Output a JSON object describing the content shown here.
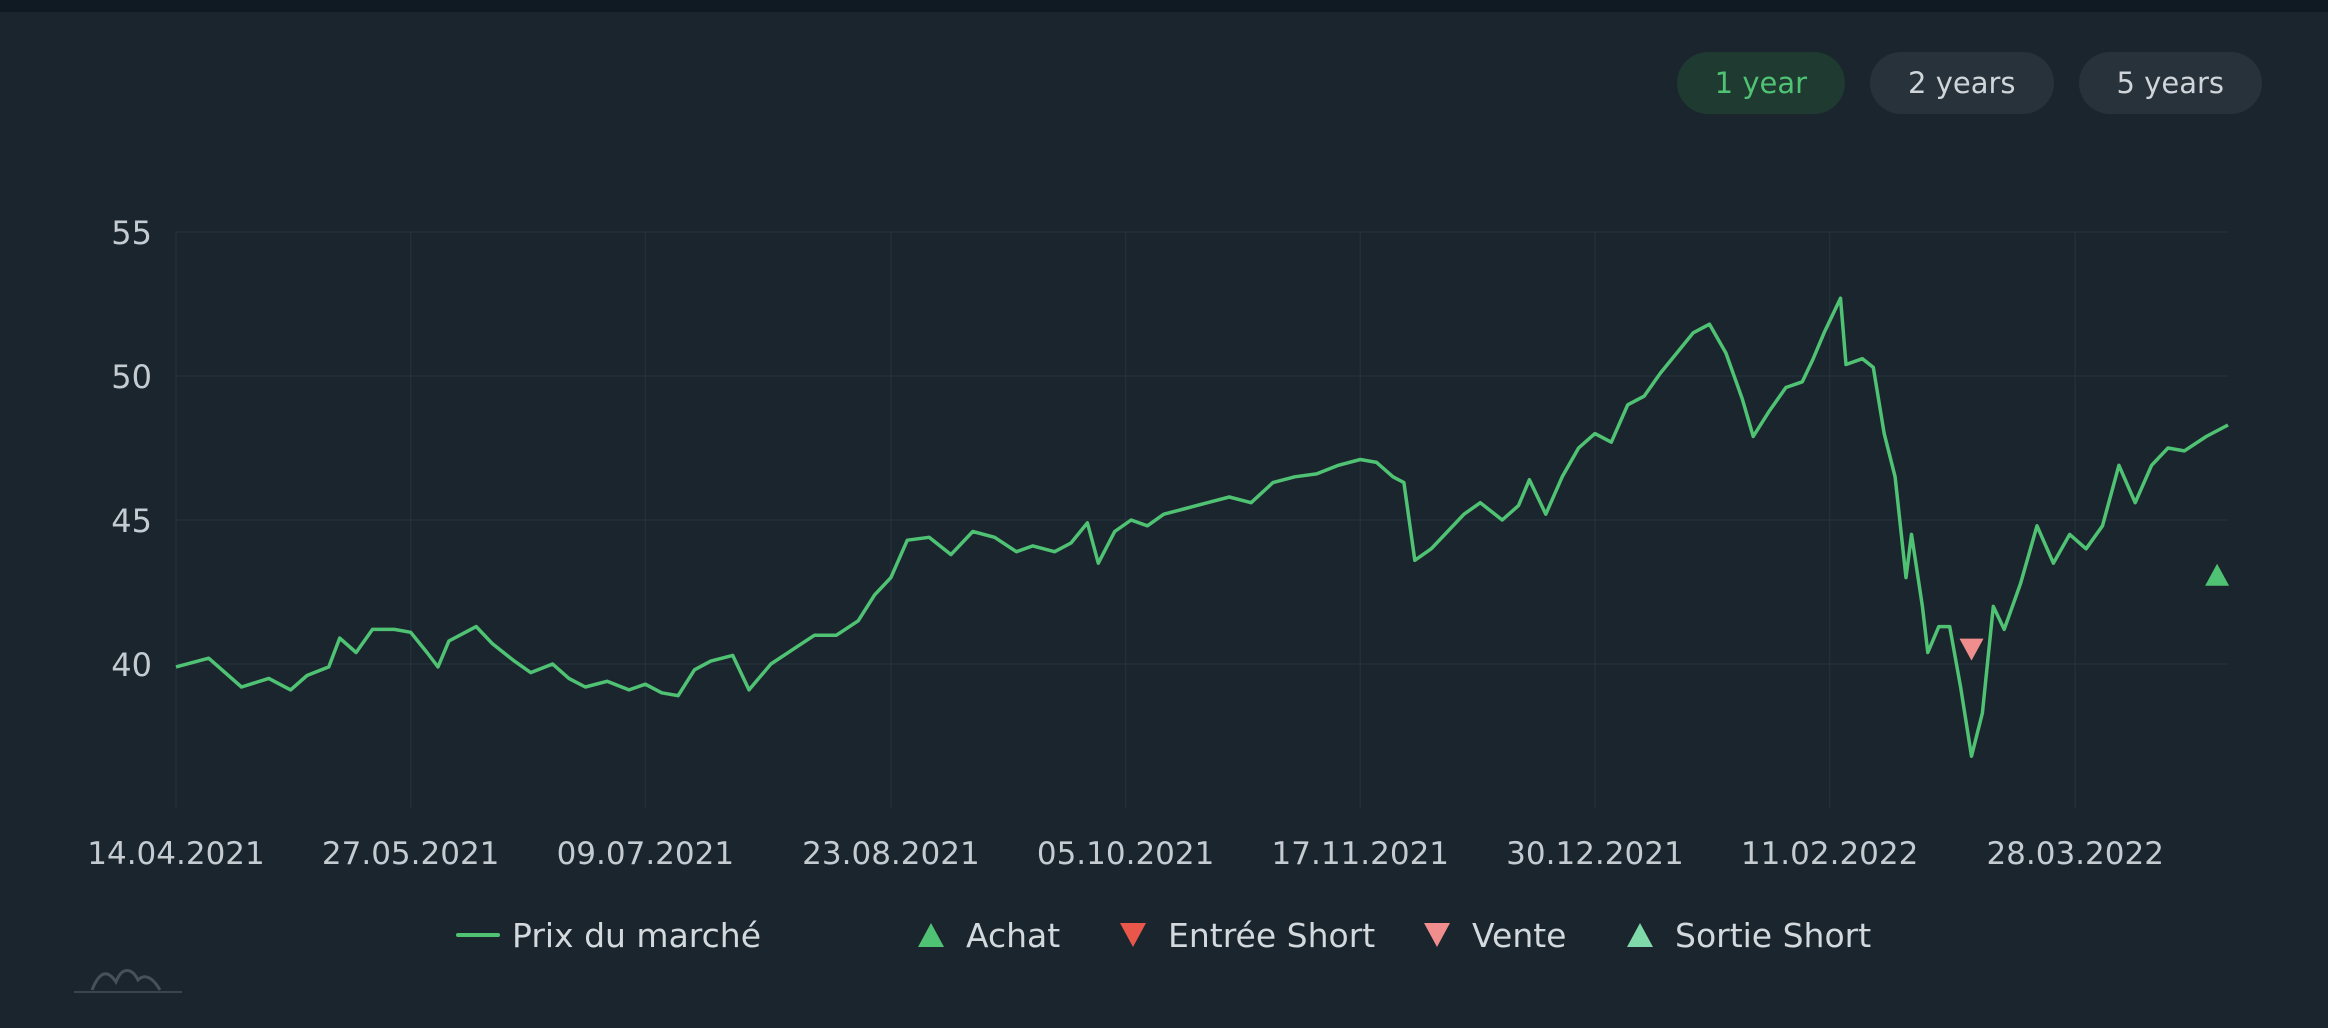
{
  "range_buttons": [
    {
      "label": "1 year",
      "active": true
    },
    {
      "label": "2 years",
      "active": false
    },
    {
      "label": "5 years",
      "active": false
    }
  ],
  "colors": {
    "background": "#1a252d",
    "line": "#4fc273",
    "grid": "#22303a",
    "axis_text": "#c5ccd1",
    "achat": "#4fc273",
    "entree_short": "#e9574b",
    "vente": "#f08d8d",
    "sortie_short": "#7fd9a8"
  },
  "legend": [
    {
      "label": "Prix du marché",
      "icon": "line-icon"
    },
    {
      "label": "Achat",
      "icon": "triangle-up-icon"
    },
    {
      "label": "Entrée Short",
      "icon": "triangle-down-icon"
    },
    {
      "label": "Vente",
      "icon": "triangle-down-icon"
    },
    {
      "label": "Sortie Short",
      "icon": "triangle-up-icon"
    }
  ],
  "chart_data": {
    "type": "line",
    "title": "",
    "xlabel": "",
    "ylabel": "",
    "ylim": [
      35,
      55
    ],
    "yticks": [
      40,
      45,
      50,
      55
    ],
    "xticks": [
      "14.04.2021",
      "27.05.2021",
      "09.07.2021",
      "23.08.2021",
      "05.10.2021",
      "17.11.2021",
      "30.12.2021",
      "11.02.2022",
      "28.03.2022"
    ],
    "x_start": "2021-04-14",
    "x_end": "2022-04-25",
    "grid": true,
    "legend_position": "bottom",
    "series": [
      {
        "name": "Prix du marché",
        "points": [
          [
            "2021-04-14",
            39.9
          ],
          [
            "2021-04-20",
            40.2
          ],
          [
            "2021-04-26",
            39.2
          ],
          [
            "2021-05-01",
            39.5
          ],
          [
            "2021-05-05",
            39.1
          ],
          [
            "2021-05-08",
            39.6
          ],
          [
            "2021-05-12",
            39.9
          ],
          [
            "2021-05-14",
            40.9
          ],
          [
            "2021-05-17",
            40.4
          ],
          [
            "2021-05-20",
            41.2
          ],
          [
            "2021-05-24",
            41.2
          ],
          [
            "2021-05-27",
            41.1
          ],
          [
            "2021-05-30",
            40.4
          ],
          [
            "2021-06-01",
            39.9
          ],
          [
            "2021-06-03",
            40.8
          ],
          [
            "2021-06-08",
            41.3
          ],
          [
            "2021-06-11",
            40.7
          ],
          [
            "2021-06-15",
            40.1
          ],
          [
            "2021-06-18",
            39.7
          ],
          [
            "2021-06-22",
            40.0
          ],
          [
            "2021-06-25",
            39.5
          ],
          [
            "2021-06-28",
            39.2
          ],
          [
            "2021-07-02",
            39.4
          ],
          [
            "2021-07-06",
            39.1
          ],
          [
            "2021-07-09",
            39.3
          ],
          [
            "2021-07-12",
            39.0
          ],
          [
            "2021-07-15",
            38.9
          ],
          [
            "2021-07-18",
            39.8
          ],
          [
            "2021-07-21",
            40.1
          ],
          [
            "2021-07-25",
            40.3
          ],
          [
            "2021-07-28",
            39.1
          ],
          [
            "2021-08-01",
            40.0
          ],
          [
            "2021-08-05",
            40.5
          ],
          [
            "2021-08-09",
            41.0
          ],
          [
            "2021-08-13",
            41.0
          ],
          [
            "2021-08-17",
            41.5
          ],
          [
            "2021-08-20",
            42.4
          ],
          [
            "2021-08-23",
            43.0
          ],
          [
            "2021-08-26",
            44.3
          ],
          [
            "2021-08-30",
            44.4
          ],
          [
            "2021-09-03",
            43.8
          ],
          [
            "2021-09-07",
            44.6
          ],
          [
            "2021-09-11",
            44.4
          ],
          [
            "2021-09-15",
            43.9
          ],
          [
            "2021-09-18",
            44.1
          ],
          [
            "2021-09-22",
            43.9
          ],
          [
            "2021-09-25",
            44.2
          ],
          [
            "2021-09-28",
            44.9
          ],
          [
            "2021-09-30",
            43.5
          ],
          [
            "2021-10-03",
            44.6
          ],
          [
            "2021-10-06",
            45.0
          ],
          [
            "2021-10-09",
            44.8
          ],
          [
            "2021-10-12",
            45.2
          ],
          [
            "2021-10-16",
            45.4
          ],
          [
            "2021-10-20",
            45.6
          ],
          [
            "2021-10-24",
            45.8
          ],
          [
            "2021-10-28",
            45.6
          ],
          [
            "2021-11-01",
            46.3
          ],
          [
            "2021-11-05",
            46.5
          ],
          [
            "2021-11-09",
            46.6
          ],
          [
            "2021-11-13",
            46.9
          ],
          [
            "2021-11-17",
            47.1
          ],
          [
            "2021-11-20",
            47.0
          ],
          [
            "2021-11-23",
            46.5
          ],
          [
            "2021-11-25",
            46.3
          ],
          [
            "2021-11-27",
            43.6
          ],
          [
            "2021-11-30",
            44.0
          ],
          [
            "2021-12-03",
            44.6
          ],
          [
            "2021-12-06",
            45.2
          ],
          [
            "2021-12-09",
            45.6
          ],
          [
            "2021-12-13",
            45.0
          ],
          [
            "2021-12-16",
            45.5
          ],
          [
            "2021-12-18",
            46.4
          ],
          [
            "2021-12-21",
            45.2
          ],
          [
            "2021-12-24",
            46.5
          ],
          [
            "2021-12-27",
            47.5
          ],
          [
            "2021-12-30",
            48.0
          ],
          [
            "2022-01-02",
            47.7
          ],
          [
            "2022-01-05",
            49.0
          ],
          [
            "2022-01-08",
            49.3
          ],
          [
            "2022-01-11",
            50.1
          ],
          [
            "2022-01-14",
            50.8
          ],
          [
            "2022-01-17",
            51.5
          ],
          [
            "2022-01-20",
            51.8
          ],
          [
            "2022-01-23",
            50.8
          ],
          [
            "2022-01-26",
            49.2
          ],
          [
            "2022-01-28",
            47.9
          ],
          [
            "2022-01-31",
            48.8
          ],
          [
            "2022-02-03",
            49.6
          ],
          [
            "2022-02-06",
            49.8
          ],
          [
            "2022-02-08",
            50.6
          ],
          [
            "2022-02-10",
            51.5
          ],
          [
            "2022-02-13",
            52.7
          ],
          [
            "2022-02-14",
            50.4
          ],
          [
            "2022-02-17",
            50.6
          ],
          [
            "2022-02-19",
            50.3
          ],
          [
            "2022-02-21",
            48.0
          ],
          [
            "2022-02-23",
            46.5
          ],
          [
            "2022-02-25",
            43.0
          ],
          [
            "2022-02-26",
            44.5
          ],
          [
            "2022-02-28",
            42.0
          ],
          [
            "2022-03-01",
            40.4
          ],
          [
            "2022-03-03",
            41.3
          ],
          [
            "2022-03-05",
            41.3
          ],
          [
            "2022-03-07",
            39.2
          ],
          [
            "2022-03-09",
            36.8
          ],
          [
            "2022-03-11",
            38.3
          ],
          [
            "2022-03-13",
            42.0
          ],
          [
            "2022-03-15",
            41.2
          ],
          [
            "2022-03-18",
            42.8
          ],
          [
            "2022-03-21",
            44.8
          ],
          [
            "2022-03-24",
            43.5
          ],
          [
            "2022-03-27",
            44.5
          ],
          [
            "2022-03-30",
            44.0
          ],
          [
            "2022-04-02",
            44.8
          ],
          [
            "2022-04-05",
            46.9
          ],
          [
            "2022-04-08",
            45.6
          ],
          [
            "2022-04-11",
            46.9
          ],
          [
            "2022-04-14",
            47.5
          ],
          [
            "2022-04-17",
            47.4
          ],
          [
            "2022-04-21",
            47.9
          ],
          [
            "2022-04-25",
            48.3
          ]
        ]
      }
    ],
    "markers": [
      {
        "type": "Vente",
        "date": "2022-03-09",
        "value": 40.5
      },
      {
        "type": "Achat",
        "date": "2022-04-23",
        "value": 43.1
      }
    ]
  }
}
